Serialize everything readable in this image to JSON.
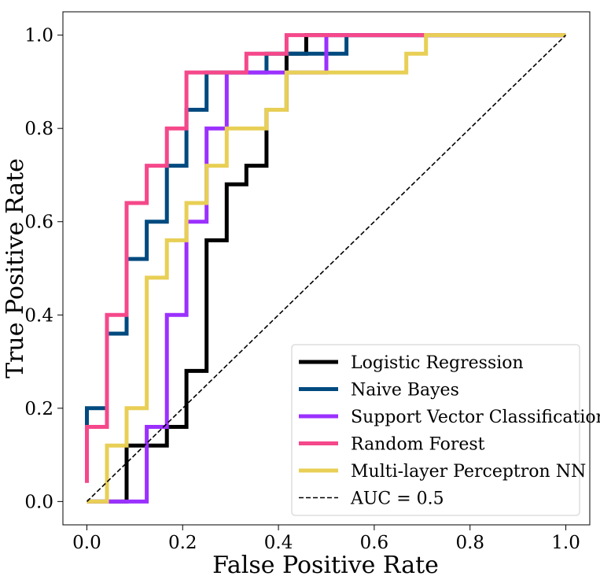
{
  "chart_data": {
    "type": "line",
    "title": "",
    "xlabel": "False Positive Rate",
    "ylabel": "True Positive Rate",
    "xlim": [
      -0.05,
      1.05
    ],
    "ylim": [
      -0.05,
      1.05
    ],
    "xticks": [
      0.0,
      0.2,
      0.4,
      0.6,
      0.8,
      1.0
    ],
    "yticks": [
      0.0,
      0.2,
      0.4,
      0.6,
      0.8,
      1.0
    ],
    "xtick_labels": [
      "0.0",
      "0.2",
      "0.4",
      "0.6",
      "0.8",
      "1.0"
    ],
    "ytick_labels": [
      "0.0",
      "0.2",
      "0.4",
      "0.6",
      "0.8",
      "1.0"
    ],
    "grid": false,
    "legend_position": "lower-right",
    "series": [
      {
        "name": "Logistic Regression",
        "color": "#000000",
        "dash": false,
        "x": [
          0.0,
          0.083,
          0.083,
          0.167,
          0.167,
          0.208,
          0.208,
          0.25,
          0.25,
          0.292,
          0.292,
          0.333,
          0.333,
          0.375,
          0.375,
          0.417,
          0.417,
          0.458,
          0.458,
          0.542,
          0.542,
          0.708,
          1.0
        ],
        "y": [
          0.0,
          0.0,
          0.12,
          0.12,
          0.16,
          0.16,
          0.28,
          0.28,
          0.56,
          0.56,
          0.68,
          0.68,
          0.72,
          0.72,
          0.84,
          0.84,
          0.96,
          0.96,
          1.0,
          1.0,
          1.0,
          1.0,
          1.0
        ]
      },
      {
        "name": "Naive Bayes",
        "color": "#004a7f",
        "dash": false,
        "x": [
          0.0,
          0.0,
          0.042,
          0.042,
          0.083,
          0.083,
          0.125,
          0.125,
          0.167,
          0.167,
          0.208,
          0.208,
          0.25,
          0.25,
          0.375,
          0.375,
          0.542,
          0.542,
          1.0
        ],
        "y": [
          0.16,
          0.2,
          0.2,
          0.36,
          0.36,
          0.52,
          0.52,
          0.6,
          0.6,
          0.72,
          0.72,
          0.84,
          0.84,
          0.92,
          0.92,
          0.96,
          0.96,
          1.0,
          1.0
        ]
      },
      {
        "name": "Support Vector Classification",
        "color": "#9b30ff",
        "dash": false,
        "x": [
          0.0,
          0.125,
          0.125,
          0.167,
          0.167,
          0.208,
          0.208,
          0.25,
          0.25,
          0.292,
          0.292,
          0.5,
          0.5,
          1.0
        ],
        "y": [
          0.0,
          0.0,
          0.16,
          0.16,
          0.4,
          0.4,
          0.6,
          0.6,
          0.8,
          0.8,
          0.92,
          0.92,
          1.0,
          1.0
        ]
      },
      {
        "name": "Random Forest",
        "color": "#f5488a",
        "dash": false,
        "x": [
          0.0,
          0.0,
          0.042,
          0.042,
          0.083,
          0.083,
          0.125,
          0.125,
          0.167,
          0.167,
          0.208,
          0.208,
          0.333,
          0.333,
          0.417,
          0.417,
          1.0
        ],
        "y": [
          0.04,
          0.16,
          0.16,
          0.4,
          0.4,
          0.64,
          0.64,
          0.72,
          0.72,
          0.8,
          0.8,
          0.92,
          0.92,
          0.96,
          0.96,
          1.0,
          1.0
        ]
      },
      {
        "name": "Multi-layer Perceptron NN",
        "color": "#e8cf55",
        "dash": false,
        "x": [
          0.0,
          0.042,
          0.042,
          0.083,
          0.083,
          0.125,
          0.125,
          0.167,
          0.167,
          0.208,
          0.208,
          0.25,
          0.25,
          0.292,
          0.292,
          0.375,
          0.375,
          0.417,
          0.417,
          0.667,
          0.667,
          0.708,
          0.708,
          1.0
        ],
        "y": [
          0.0,
          0.0,
          0.12,
          0.12,
          0.2,
          0.2,
          0.48,
          0.48,
          0.56,
          0.56,
          0.64,
          0.64,
          0.72,
          0.72,
          0.8,
          0.8,
          0.84,
          0.84,
          0.92,
          0.92,
          0.96,
          0.96,
          1.0,
          1.0
        ]
      },
      {
        "name": "AUC = 0.5",
        "color": "#000000",
        "dash": true,
        "x": [
          0.0,
          1.0
        ],
        "y": [
          0.0,
          1.0
        ]
      }
    ]
  }
}
